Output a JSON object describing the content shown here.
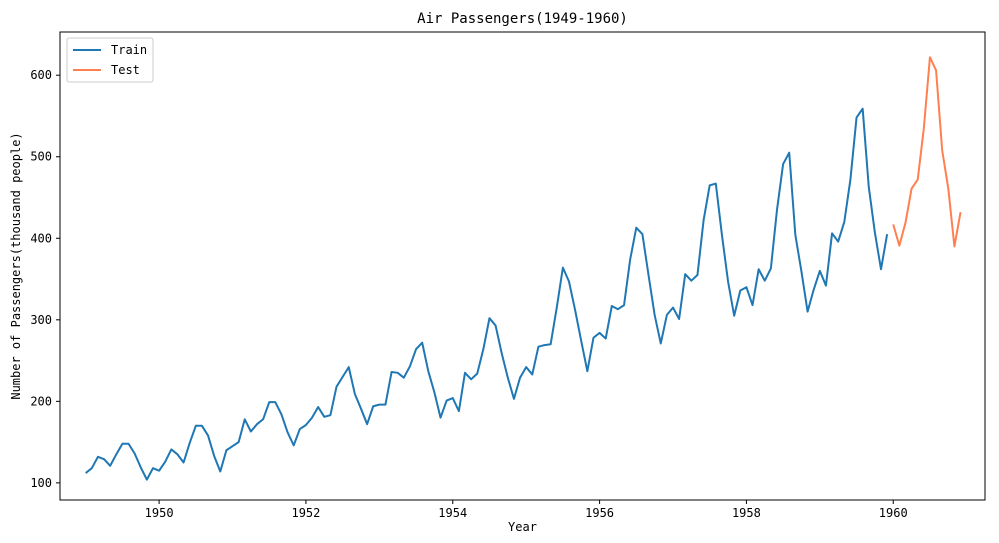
{
  "chart_data": {
    "type": "line",
    "title": "Air Passengers(1949-1960)",
    "xlabel": "Year",
    "ylabel": "Number of Passengers(thousand people)",
    "xlim": [
      1948.65,
      1961.25
    ],
    "ylim": [
      79,
      653
    ],
    "xticks": [
      1950,
      1952,
      1954,
      1956,
      1958,
      1960
    ],
    "xtick_labels": [
      "1950",
      "1952",
      "1954",
      "1956",
      "1958",
      "1960"
    ],
    "yticks": [
      100,
      200,
      300,
      400,
      500,
      600
    ],
    "ytick_labels": [
      "100",
      "200",
      "300",
      "400",
      "500",
      "600"
    ],
    "legend_position": "top-left",
    "grid": false,
    "series": [
      {
        "name": "Train",
        "color": "#1f77b4",
        "start_year": 1949.0,
        "step": 0.0833333,
        "values": [
          112,
          118,
          132,
          129,
          121,
          135,
          148,
          148,
          136,
          119,
          104,
          118,
          115,
          126,
          141,
          135,
          125,
          149,
          170,
          170,
          158,
          133,
          114,
          140,
          145,
          150,
          178,
          163,
          172,
          178,
          199,
          199,
          184,
          162,
          146,
          166,
          171,
          180,
          193,
          181,
          183,
          218,
          230,
          242,
          209,
          191,
          172,
          194,
          196,
          196,
          236,
          235,
          229,
          243,
          264,
          272,
          237,
          211,
          180,
          201,
          204,
          188,
          235,
          227,
          234,
          264,
          302,
          293,
          259,
          229,
          203,
          229,
          242,
          233,
          267,
          269,
          270,
          315,
          364,
          347,
          312,
          274,
          237,
          278,
          284,
          277,
          317,
          313,
          318,
          374,
          413,
          405,
          355,
          306,
          271,
          306,
          315,
          301,
          356,
          348,
          355,
          422,
          465,
          467,
          404,
          347,
          305,
          336,
          340,
          318,
          362,
          348,
          363,
          435,
          491,
          505,
          404,
          359,
          310,
          337,
          360,
          342,
          406,
          396,
          420,
          472,
          548,
          559,
          463,
          407,
          362,
          405
        ]
      },
      {
        "name": "Test",
        "color": "#ff7f50",
        "start_year": 1960.0,
        "step": 0.0833333,
        "values": [
          417,
          391,
          419,
          461,
          472,
          535,
          622,
          606,
          508,
          461,
          390,
          432
        ]
      }
    ]
  }
}
